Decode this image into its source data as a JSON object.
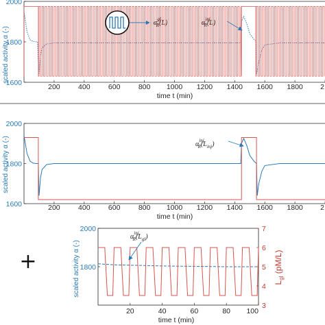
{
  "chart_data": [
    {
      "type": "line",
      "panel": "top",
      "xlabel": "time t (min)",
      "ylabel": "scaled activity α (-)",
      "xticks": [
        "200",
        "400",
        "600",
        "800",
        "1000",
        "1200",
        "1400",
        "1600",
        "1800",
        "2"
      ],
      "yticks": [
        "1600",
        "1800",
        "2000"
      ],
      "xlim": [
        0,
        2000
      ],
      "ylim": [
        1600,
        2000
      ],
      "series": [
        {
          "name": "",
          "color": "#2a7ab8",
          "style": "dotted",
          "x": [
            0,
            20,
            40,
            60,
            80,
            90,
            95,
            100,
            110,
            120,
            150,
            200,
            400,
            800,
            1200,
            1440,
            1445,
            1460,
            1480,
            1500,
            1530,
            1540,
            1545,
            1560,
            1580,
            1600,
            1700,
            1800,
            2000
          ],
          "y": [
            1950,
            1850,
            1810,
            1802,
            1800,
            1800,
            1700,
            1640,
            1730,
            1770,
            1790,
            1795,
            1795,
            1795,
            1795,
            1795,
            1900,
            1925,
            1890,
            1840,
            1810,
            1805,
            1640,
            1700,
            1760,
            1785,
            1795,
            1795,
            1795
          ]
        },
        {
          "name": "",
          "color": "#d9534f",
          "style": "oscillating square",
          "high": 1975,
          "low": 1630,
          "segments": [
            [
              0,
              95,
              "high"
            ],
            [
              100,
              1440,
              "switching"
            ],
            [
              1445,
              1540,
              "high"
            ],
            [
              1545,
              2000,
              "switching"
            ]
          ]
        }
      ],
      "annotations": [
        "α_R^{gl}(L)",
        "α_R^{inj}(L)"
      ]
    },
    {
      "type": "line",
      "panel": "middle",
      "xlabel": "time t (min)",
      "ylabel": "scaled activity α (-)",
      "xticks": [
        "200",
        "400",
        "600",
        "800",
        "1000",
        "1200",
        "1400",
        "1600",
        "1800",
        "2"
      ],
      "yticks": [
        "1600",
        "1800",
        "2000"
      ],
      "xlim": [
        0,
        2000
      ],
      "ylim": [
        1600,
        2000
      ],
      "series": [
        {
          "name": "",
          "color": "#2a7ab8",
          "style": "solid",
          "x": [
            0,
            20,
            40,
            60,
            80,
            95,
            100,
            110,
            120,
            150,
            200,
            800,
            1440,
            1445,
            1460,
            1480,
            1500,
            1530,
            1545,
            1550,
            1560,
            1580,
            1600,
            1700,
            2000
          ],
          "y": [
            1940,
            1850,
            1812,
            1802,
            1800,
            1800,
            1640,
            1730,
            1770,
            1795,
            1800,
            1800,
            1800,
            1900,
            1925,
            1890,
            1840,
            1810,
            1800,
            1640,
            1700,
            1760,
            1790,
            1800,
            1800
          ]
        },
        {
          "name": "",
          "color": "#d9534f",
          "style": "solid",
          "x": [
            0,
            95,
            95,
            1445,
            1445,
            1545,
            1545,
            2000
          ],
          "y": [
            1930,
            1930,
            1620,
            1620,
            1930,
            1930,
            1620,
            1620
          ]
        }
      ],
      "annotations": [
        "α_R^{inj}(L_{inj})"
      ]
    },
    {
      "type": "line",
      "panel": "bottom",
      "xlabel": "time t (min)",
      "ylabel": "scaled activity α (-)",
      "y2label": "L_gl (pM/L)",
      "xticks": [
        "20",
        "40",
        "60",
        "80",
        "100"
      ],
      "yticks": [
        "1800",
        "2000"
      ],
      "y2ticks": [
        "3",
        "4",
        "5",
        "6",
        "7"
      ],
      "xlim": [
        0,
        100
      ],
      "ylim": [
        1600,
        2000
      ],
      "y2lim": [
        3,
        7
      ],
      "series": [
        {
          "name": "",
          "color": "#2a7ab8",
          "style": "dashed",
          "axis": "left",
          "x": [
            0,
            10,
            20,
            30,
            40,
            50,
            60,
            70,
            80,
            90,
            100
          ],
          "y": [
            1815,
            1810,
            1808,
            1806,
            1804,
            1803,
            1802,
            1801,
            1800,
            1800,
            1800
          ]
        },
        {
          "name": "",
          "color": "#d9534f",
          "style": "solid",
          "axis": "right",
          "high": 6,
          "low": 3.5,
          "period": 10,
          "duty": 0.5
        }
      ],
      "annotations": [
        "α_R^{inj}(L_{gl})"
      ]
    }
  ],
  "plus_sign": "+"
}
